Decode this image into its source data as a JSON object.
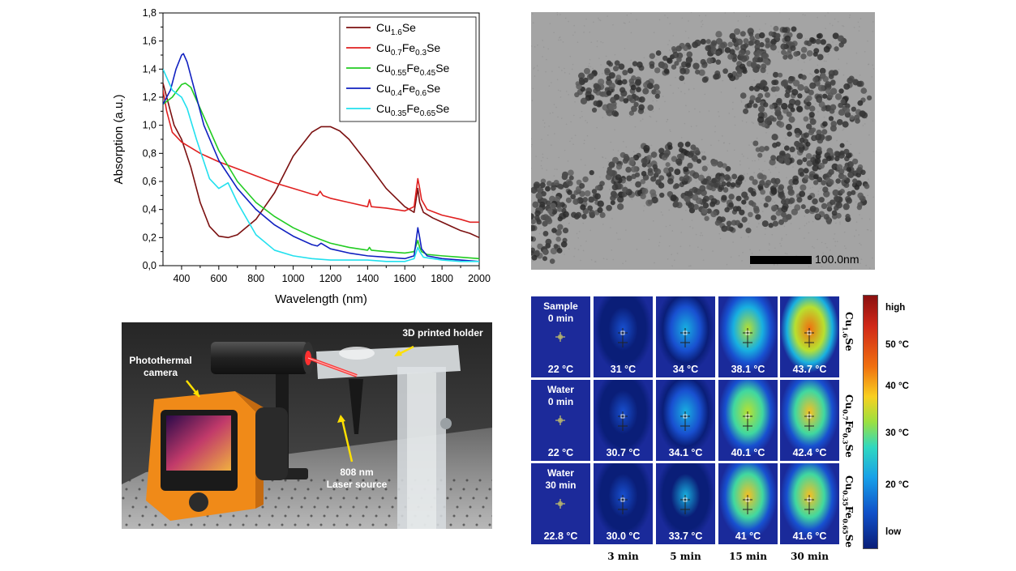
{
  "chart_data": {
    "type": "line",
    "title": "",
    "xlabel": "Wavelength (nm)",
    "ylabel": "Absorption (a.u.)",
    "xlim": [
      300,
      2000
    ],
    "ylim": [
      0,
      1.8
    ],
    "xticks": [
      "400",
      "600",
      "800",
      "1000",
      "1200",
      "1400",
      "1600",
      "1800",
      "2000"
    ],
    "yticks": [
      "0,0",
      "0,2",
      "0,4",
      "0,6",
      "0,8",
      "1,0",
      "1,2",
      "1,4",
      "1,6",
      "1,8"
    ],
    "legend_position": "top-right",
    "series": [
      {
        "name": "Cu1.6Se",
        "name_parts": [
          [
            "Cu",
            ""
          ],
          [
            "1.6",
            "sub"
          ],
          [
            "Se",
            ""
          ]
        ],
        "color": "#7b1010",
        "x": [
          300,
          330,
          360,
          400,
          450,
          500,
          550,
          600,
          650,
          700,
          800,
          900,
          1000,
          1100,
          1150,
          1200,
          1250,
          1300,
          1400,
          1500,
          1600,
          1650,
          1670,
          1680,
          1700,
          1750,
          1800,
          1850,
          1900,
          1950,
          2000
        ],
        "y": [
          1.3,
          1.15,
          1.0,
          0.9,
          0.7,
          0.45,
          0.28,
          0.21,
          0.2,
          0.22,
          0.33,
          0.52,
          0.78,
          0.95,
          0.99,
          0.99,
          0.96,
          0.9,
          0.73,
          0.55,
          0.42,
          0.38,
          0.55,
          0.45,
          0.38,
          0.34,
          0.31,
          0.28,
          0.25,
          0.23,
          0.2
        ]
      },
      {
        "name": "Cu0.7Fe0.3Se",
        "name_parts": [
          [
            "Cu",
            ""
          ],
          [
            "0.7",
            "sub"
          ],
          [
            "Fe",
            ""
          ],
          [
            "0.3",
            "sub"
          ],
          [
            "Se",
            ""
          ]
        ],
        "color": "#e02020",
        "x": [
          300,
          320,
          350,
          400,
          500,
          600,
          700,
          800,
          900,
          1000,
          1100,
          1130,
          1145,
          1160,
          1200,
          1300,
          1400,
          1410,
          1420,
          1500,
          1600,
          1650,
          1670,
          1680,
          1690,
          1720,
          1800,
          1900,
          1950,
          2000
        ],
        "y": [
          1.25,
          1.1,
          0.95,
          0.88,
          0.8,
          0.74,
          0.69,
          0.64,
          0.59,
          0.55,
          0.51,
          0.5,
          0.53,
          0.5,
          0.48,
          0.45,
          0.42,
          0.47,
          0.42,
          0.41,
          0.39,
          0.42,
          0.62,
          0.55,
          0.47,
          0.4,
          0.36,
          0.33,
          0.31,
          0.31
        ]
      },
      {
        "name": "Cu0.55Fe0.45Se",
        "name_parts": [
          [
            "Cu",
            ""
          ],
          [
            "0.55",
            "sub"
          ],
          [
            "Fe",
            ""
          ],
          [
            "0.45",
            "sub"
          ],
          [
            "Se",
            ""
          ]
        ],
        "color": "#22cc22",
        "x": [
          300,
          350,
          400,
          420,
          450,
          500,
          600,
          700,
          800,
          900,
          1000,
          1100,
          1200,
          1300,
          1400,
          1410,
          1420,
          1500,
          1600,
          1650,
          1670,
          1680,
          1690,
          1720,
          1800,
          1900,
          2000
        ],
        "y": [
          1.15,
          1.2,
          1.29,
          1.3,
          1.27,
          1.12,
          0.82,
          0.6,
          0.45,
          0.35,
          0.27,
          0.21,
          0.16,
          0.13,
          0.11,
          0.13,
          0.11,
          0.1,
          0.09,
          0.1,
          0.18,
          0.13,
          0.1,
          0.08,
          0.07,
          0.06,
          0.05
        ]
      },
      {
        "name": "Cu0.4Fe0.6Se",
        "name_parts": [
          [
            "Cu",
            ""
          ],
          [
            "0.4",
            "sub"
          ],
          [
            "Fe",
            ""
          ],
          [
            "0.6",
            "sub"
          ],
          [
            "Se",
            ""
          ]
        ],
        "color": "#1020c0",
        "x": [
          300,
          340,
          370,
          400,
          410,
          430,
          470,
          520,
          600,
          700,
          800,
          900,
          1000,
          1100,
          1130,
          1150,
          1200,
          1300,
          1400,
          1500,
          1600,
          1650,
          1670,
          1680,
          1690,
          1720,
          1800,
          1900,
          2000
        ],
        "y": [
          1.15,
          1.25,
          1.4,
          1.5,
          1.51,
          1.45,
          1.25,
          1.0,
          0.75,
          0.55,
          0.4,
          0.29,
          0.21,
          0.15,
          0.14,
          0.16,
          0.12,
          0.09,
          0.07,
          0.06,
          0.05,
          0.07,
          0.27,
          0.2,
          0.12,
          0.07,
          0.05,
          0.04,
          0.03
        ]
      },
      {
        "name": "Cu0.35Fe0.65Se",
        "name_parts": [
          [
            "Cu",
            ""
          ],
          [
            "0.35",
            "sub"
          ],
          [
            "Fe",
            ""
          ],
          [
            "0.65",
            "sub"
          ],
          [
            "Se",
            ""
          ]
        ],
        "color": "#22e0ee",
        "x": [
          300,
          350,
          400,
          430,
          480,
          550,
          600,
          650,
          700,
          800,
          900,
          1000,
          1100,
          1200,
          1300,
          1400,
          1500,
          1600,
          1650,
          1670,
          1680,
          1700,
          1800,
          1900,
          2000
        ],
        "y": [
          1.4,
          1.25,
          1.2,
          1.12,
          0.9,
          0.62,
          0.55,
          0.59,
          0.45,
          0.22,
          0.11,
          0.07,
          0.05,
          0.04,
          0.04,
          0.04,
          0.03,
          0.03,
          0.05,
          0.13,
          0.1,
          0.06,
          0.04,
          0.03,
          0.03
        ]
      }
    ]
  },
  "tem": {
    "scale_label": "100.0nm"
  },
  "setup": {
    "camera_label_1": "Photothermal",
    "camera_label_2": "camera",
    "holder_label": "3D printed holder",
    "laser_label_1": "808 nm",
    "laser_label_2": "Laser source"
  },
  "thermal": {
    "rows": [
      {
        "header_1": "Sample",
        "header_2": "0 min",
        "temps": [
          "22 °C",
          "31 °C",
          "34 °C",
          "38.1 °C",
          "43.7 °C"
        ],
        "levels": [
          0.0,
          0.35,
          0.45,
          0.7,
          0.88
        ]
      },
      {
        "header_1": "Water",
        "header_2": "0 min",
        "temps": [
          "22 °C",
          "30.7 °C",
          "34.1 °C",
          "40.1 °C",
          "42.4 °C"
        ],
        "levels": [
          0.0,
          0.33,
          0.45,
          0.74,
          0.82
        ]
      },
      {
        "header_1": "Water",
        "header_2": "30 min",
        "temps": [
          "22.8 °C",
          "30.0 °C",
          "33.7 °C",
          "41 °C",
          "41.6 °C"
        ],
        "levels": [
          0.0,
          0.3,
          0.43,
          0.76,
          0.8
        ]
      }
    ],
    "time_labels": [
      "3 min",
      "5 min",
      "15 min",
      "30 min"
    ],
    "samples": [
      [
        [
          "Cu",
          ""
        ],
        [
          "1.6",
          "sub"
        ],
        [
          "Se",
          ""
        ]
      ],
      [
        [
          "Cu",
          ""
        ],
        [
          "0.7",
          "sub"
        ],
        [
          "Fe",
          ""
        ],
        [
          "0.3",
          "sub"
        ],
        [
          "Se",
          ""
        ]
      ],
      [
        [
          "Cu",
          ""
        ],
        [
          "0.35",
          "sub"
        ],
        [
          "Fe",
          ""
        ],
        [
          "0.65",
          "sub"
        ],
        [
          "Se",
          ""
        ]
      ]
    ]
  },
  "colorbar": {
    "labels": [
      "high",
      "50 °C",
      "40 °C",
      "30 °C",
      "20 °C",
      "low"
    ]
  }
}
